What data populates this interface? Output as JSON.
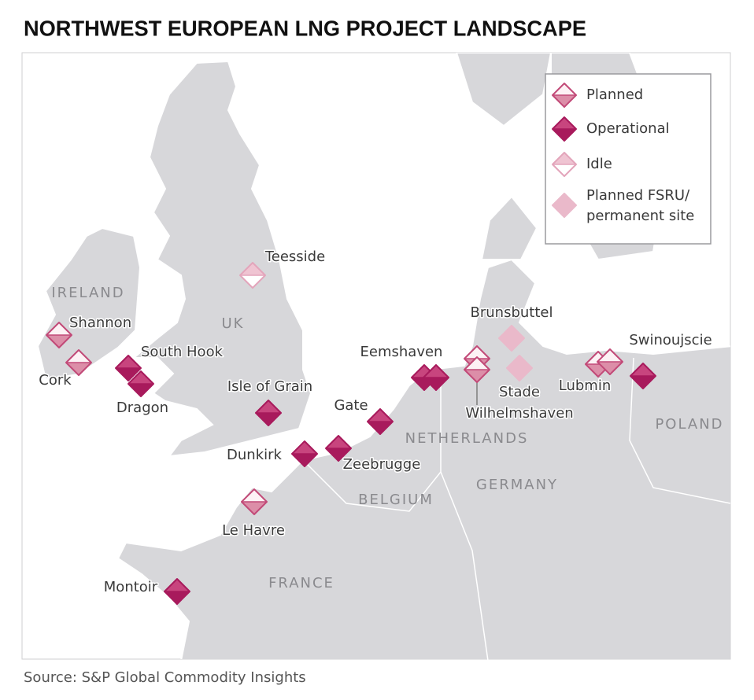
{
  "title": "NORTHWEST EUROPEAN LNG PROJECT LANDSCAPE",
  "legend": [
    {
      "lines": [
        "Planned"
      ],
      "fill": [
        "#fdf2f5",
        "#dc8ea8"
      ],
      "stroke": "#c24a78",
      "sites": [
        "Shannon",
        "Cork",
        "Le Havre",
        "Wilhelmshaven",
        "Lubmin"
      ]
    },
    {
      "lines": [
        "Operational"
      ],
      "fill": [
        "#c8457e",
        "#a81a5c"
      ],
      "stroke": "#a81a5c",
      "sites": [
        "South Hook",
        "Dragon",
        "Isle of Grain",
        "Gate",
        "Dunkirk",
        "Zeebrugge",
        "Montoir",
        "Eemshaven",
        "Swinoujscie"
      ]
    },
    {
      "lines": [
        "Idle"
      ],
      "fill": [
        "#efc4d2",
        "#ffffff"
      ],
      "stroke": "#e3a5bb",
      "sites": [
        "Teesside"
      ]
    },
    {
      "lines": [
        "Planned FSRU/",
        "permanent site"
      ],
      "fill": [
        "#eab9ca",
        "#eab9ca"
      ],
      "stroke": "#eab9ca",
      "sites": [
        "Brunsbuttel",
        "Stade"
      ]
    }
  ],
  "countries": [
    "IRELAND",
    "UK",
    "NETHERLANDS",
    "BELGIUM",
    "GERMANY",
    "FRANCE",
    "POLAND"
  ],
  "source": "Source: S&P Global Commodity Insights"
}
